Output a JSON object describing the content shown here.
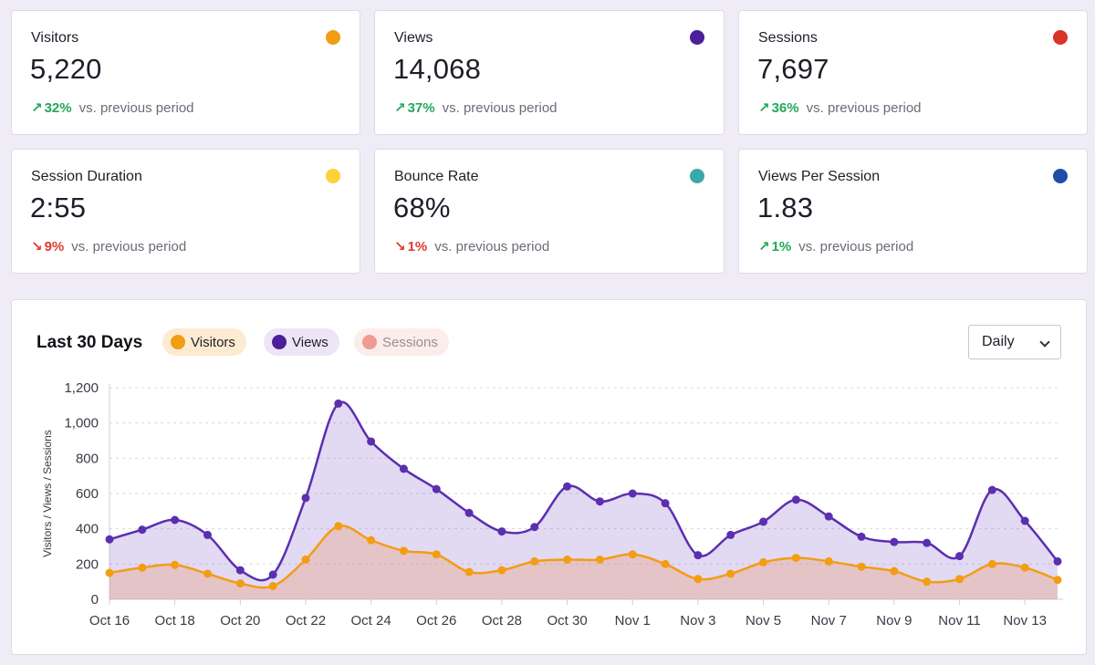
{
  "stats": [
    {
      "label": "Visitors",
      "value": "5,220",
      "direction": "up",
      "arrow": "↗",
      "change": "32%",
      "vs": "vs. previous period",
      "color": "#f29d12"
    },
    {
      "label": "Views",
      "value": "14,068",
      "direction": "up",
      "arrow": "↗",
      "change": "37%",
      "vs": "vs. previous period",
      "color": "#4b1e9a"
    },
    {
      "label": "Sessions",
      "value": "7,697",
      "direction": "up",
      "arrow": "↗",
      "change": "36%",
      "vs": "vs. previous period",
      "color": "#d9332a"
    },
    {
      "label": "Session Duration",
      "value": "2:55",
      "direction": "down",
      "arrow": "↘",
      "change": "9%",
      "vs": "vs. previous period",
      "color": "#fcd23a"
    },
    {
      "label": "Bounce Rate",
      "value": "68%",
      "direction": "down",
      "arrow": "↘",
      "change": "1%",
      "vs": "vs. previous period",
      "color": "#3aa9a8"
    },
    {
      "label": "Views Per Session",
      "value": "1.83",
      "direction": "up",
      "arrow": "↗",
      "change": "1%",
      "vs": "vs. previous period",
      "color": "#1e4fa8"
    }
  ],
  "colors": {
    "up": "#22a85a",
    "down": "#e03a2f"
  },
  "chart_panel": {
    "title": "Last 30 Days",
    "legend": [
      {
        "name": "Visitors",
        "color": "#f29d12",
        "bg": "#fdebd1",
        "text": "#1e1e2a",
        "active": true
      },
      {
        "name": "Views",
        "color": "#4b1e9a",
        "bg": "#ede5f6",
        "text": "#1e1e2a",
        "active": true
      },
      {
        "name": "Sessions",
        "color": "#ef9a92",
        "bg": "#fcecea",
        "text": "#9a8f8f",
        "active": false
      }
    ],
    "interval": {
      "selected": "Daily"
    }
  },
  "chart_data": {
    "type": "area",
    "title": "Last 30 Days",
    "xlabel": "",
    "ylabel": "Visitors / Views / Sessions",
    "ylim": [
      0,
      1200
    ],
    "yticks": [
      0,
      200,
      400,
      600,
      800,
      1000,
      1200
    ],
    "ytick_labels": [
      "0",
      "200",
      "400",
      "600",
      "800",
      "1,000",
      "1,200"
    ],
    "x": [
      "Oct 16",
      "Oct 17",
      "Oct 18",
      "Oct 19",
      "Oct 20",
      "Oct 21",
      "Oct 22",
      "Oct 23",
      "Oct 24",
      "Oct 25",
      "Oct 26",
      "Oct 27",
      "Oct 28",
      "Oct 29",
      "Oct 30",
      "Oct 31",
      "Nov 1",
      "Nov 2",
      "Nov 3",
      "Nov 4",
      "Nov 5",
      "Nov 6",
      "Nov 7",
      "Nov 8",
      "Nov 9",
      "Nov 10",
      "Nov 11",
      "Nov 12",
      "Nov 13",
      "Nov 14"
    ],
    "xtick_labels": [
      "Oct 16",
      "Oct 18",
      "Oct 20",
      "Oct 22",
      "Oct 24",
      "Oct 26",
      "Oct 28",
      "Oct 30",
      "Nov 1",
      "Nov 3",
      "Nov 5",
      "Nov 7",
      "Nov 9",
      "Nov 11",
      "Nov 13"
    ],
    "series": [
      {
        "name": "Views",
        "color": "#5b2fb0",
        "fill": "rgba(150,120,210,0.28)",
        "values": [
          340,
          395,
          450,
          365,
          165,
          140,
          575,
          1110,
          895,
          740,
          625,
          490,
          385,
          410,
          640,
          555,
          600,
          545,
          250,
          365,
          440,
          565,
          470,
          355,
          325,
          320,
          245,
          620,
          445,
          215
        ]
      },
      {
        "name": "Visitors",
        "color": "#f29d12",
        "fill": "rgba(236,150,100,0.30)",
        "values": [
          150,
          180,
          195,
          145,
          90,
          75,
          225,
          415,
          335,
          275,
          255,
          155,
          165,
          215,
          225,
          225,
          255,
          200,
          115,
          145,
          210,
          235,
          215,
          185,
          160,
          100,
          115,
          200,
          180,
          110
        ]
      }
    ]
  }
}
